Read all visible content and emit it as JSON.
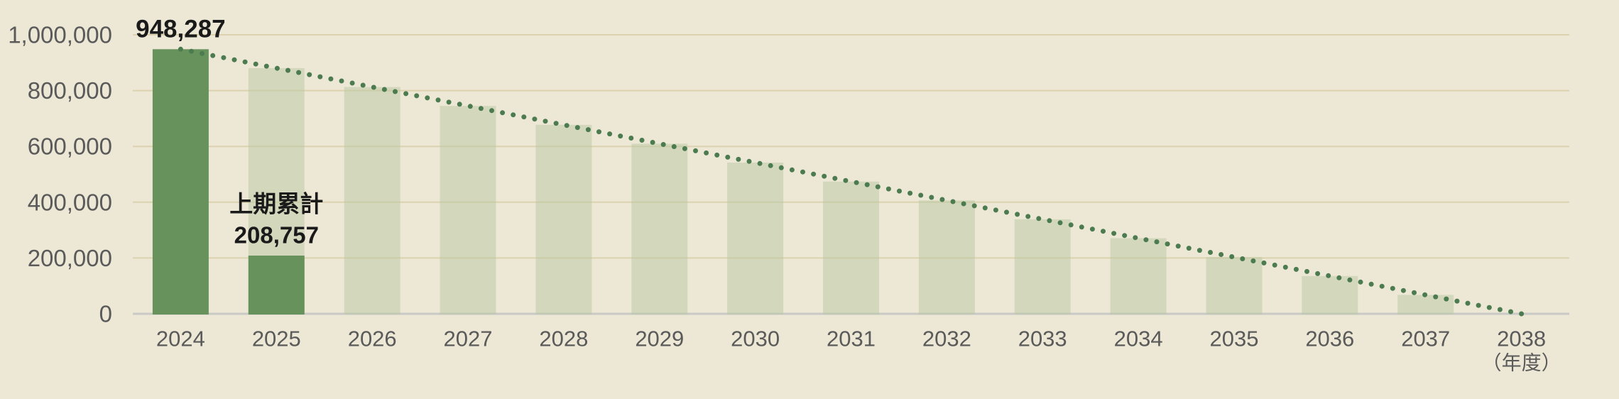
{
  "app": {
    "background_color": "#EDE8D5"
  },
  "chart_data": {
    "type": "bar",
    "title": "",
    "categories": [
      "2024",
      "2025",
      "2026",
      "2027",
      "2028",
      "2029",
      "2030",
      "2031",
      "2032",
      "2033",
      "2034",
      "2035",
      "2036",
      "2037",
      "2038"
    ],
    "x_axis_unit_label": "（年度）",
    "xlabel": "",
    "ylabel": "",
    "ylim": [
      0,
      1000000
    ],
    "grid": true,
    "legend": "none",
    "y_ticks": [
      {
        "value": 1000000,
        "label": "1,000,000"
      },
      {
        "value": 800000,
        "label": "800,000"
      },
      {
        "value": 600000,
        "label": "600,000"
      },
      {
        "value": 400000,
        "label": "400,000"
      },
      {
        "value": 200000,
        "label": "200,000"
      },
      {
        "value": 0,
        "label": "0"
      }
    ],
    "series": [
      {
        "name": "projected-remaining-bars",
        "type": "bar",
        "color": "rgba(185,200,163,0.5)",
        "values": [
          null,
          880552,
          812817,
          745083,
          677348,
          609613,
          541878,
          474144,
          406409,
          338674,
          270939,
          203204,
          135470,
          67735,
          null
        ]
      },
      {
        "name": "actual-bars",
        "type": "bar",
        "color": "#68925C",
        "values": [
          948287,
          208757,
          null,
          null,
          null,
          null,
          null,
          null,
          null,
          null,
          null,
          null,
          null,
          null,
          null
        ]
      },
      {
        "name": "trend-dotted-line",
        "type": "dotted-line",
        "color": "#4C7B50",
        "x": [
          "2024",
          "2038"
        ],
        "values": [
          948287,
          0
        ]
      }
    ],
    "annotations": [
      {
        "role": "peak-value",
        "text": "948,287",
        "category": "2024"
      },
      {
        "role": "interim-caption",
        "text": "上期累計",
        "category": "2025"
      },
      {
        "role": "interim-value",
        "text": "208,757",
        "category": "2025"
      }
    ],
    "colors": {
      "grid_line": "#DCD2AF",
      "baseline": "#C9C9C5",
      "axis_text": "#5A5A5A",
      "annotation_text": "#1A1A1A",
      "bar_actual": "#68925C",
      "bar_projection_display": "#D3D8BC",
      "trend_dot": "#4C7B50"
    }
  }
}
